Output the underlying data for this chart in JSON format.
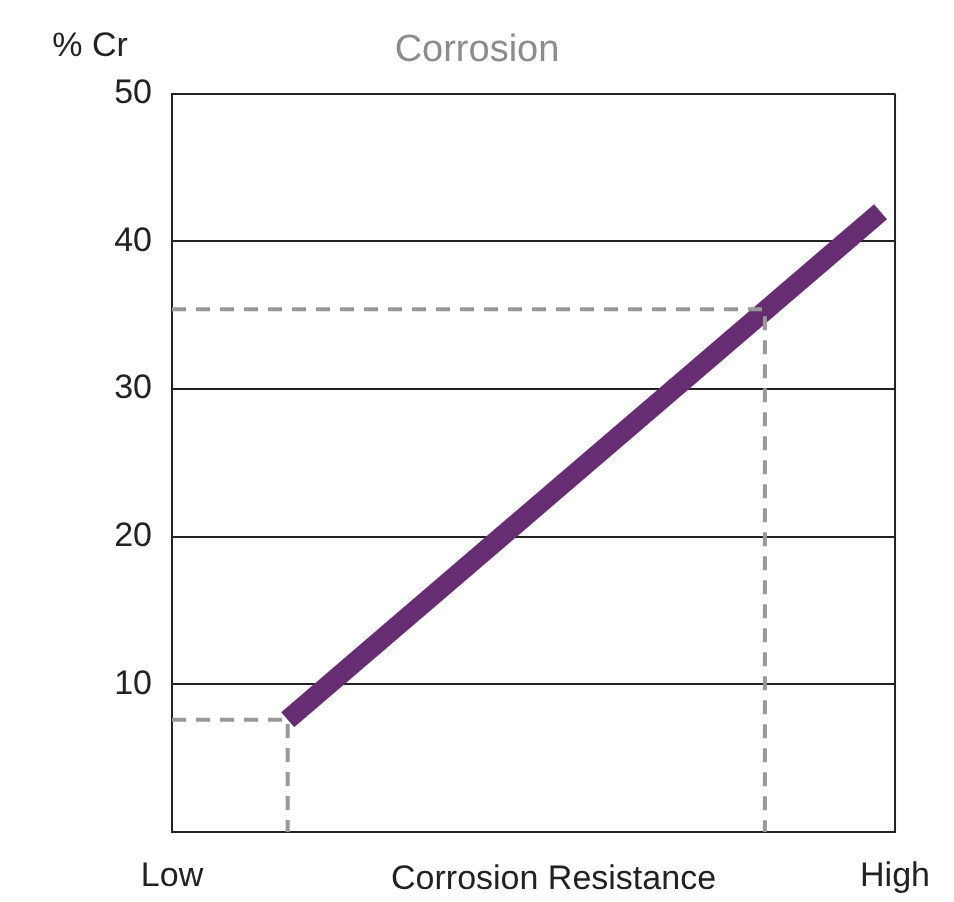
{
  "chart_data": {
    "type": "line",
    "title": "Corrosion",
    "ylabel": "% Cr",
    "xlabel": "Corrosion Resistance",
    "categories": [
      "Low",
      null,
      null,
      null,
      null,
      null,
      null,
      null,
      null,
      null,
      null,
      null,
      null,
      null,
      null,
      null,
      null,
      null,
      null,
      null,
      null,
      null,
      null,
      null,
      null,
      null,
      null,
      null,
      null,
      null,
      null,
      null,
      null,
      null,
      null,
      null,
      null,
      null,
      null,
      null,
      null,
      null,
      null,
      null,
      null,
      null,
      null,
      null,
      null,
      null,
      "High"
    ],
    "ylim": [
      0,
      50
    ],
    "yticks": [
      10,
      20,
      30,
      40,
      50
    ],
    "grid": "y",
    "marker": "none",
    "series": [
      {
        "color": "#662d73",
        "values": [
          null,
          null,
          null,
          null,
          null,
          null,
          null,
          null,
          7.6,
          null,
          null,
          null,
          null,
          null,
          null,
          null,
          null,
          null,
          null,
          null,
          null,
          null,
          null,
          null,
          null,
          null,
          null,
          null,
          null,
          null,
          null,
          null,
          null,
          null,
          null,
          null,
          null,
          null,
          null,
          null,
          null,
          null,
          null,
          null,
          null,
          null,
          null,
          null,
          null,
          42,
          null
        ]
      },
      {
        "type": "step",
        "color": "#999999",
        "line_style": "dashed",
        "values": [
          7.6,
          null,
          null,
          null,
          null,
          null,
          null,
          null,
          0,
          null,
          null,
          null,
          null,
          null,
          null,
          null,
          null,
          null,
          null,
          null,
          null,
          null,
          null,
          null,
          null,
          null,
          null,
          null,
          null,
          null,
          null,
          null,
          null,
          null,
          null,
          null,
          null,
          null,
          null,
          null,
          null,
          null,
          null,
          null,
          null,
          null,
          null,
          null,
          null,
          null,
          null
        ]
      },
      {
        "type": "step",
        "color": "#999999",
        "line_style": "dashed",
        "values": [
          35.4,
          null,
          null,
          null,
          null,
          null,
          null,
          null,
          null,
          null,
          null,
          null,
          null,
          null,
          null,
          null,
          null,
          null,
          null,
          null,
          null,
          null,
          null,
          null,
          null,
          null,
          null,
          null,
          null,
          null,
          null,
          null,
          null,
          null,
          null,
          null,
          null,
          null,
          null,
          null,
          null,
          0,
          null,
          null,
          null,
          null,
          null,
          null,
          null,
          null,
          null
        ]
      }
    ]
  }
}
